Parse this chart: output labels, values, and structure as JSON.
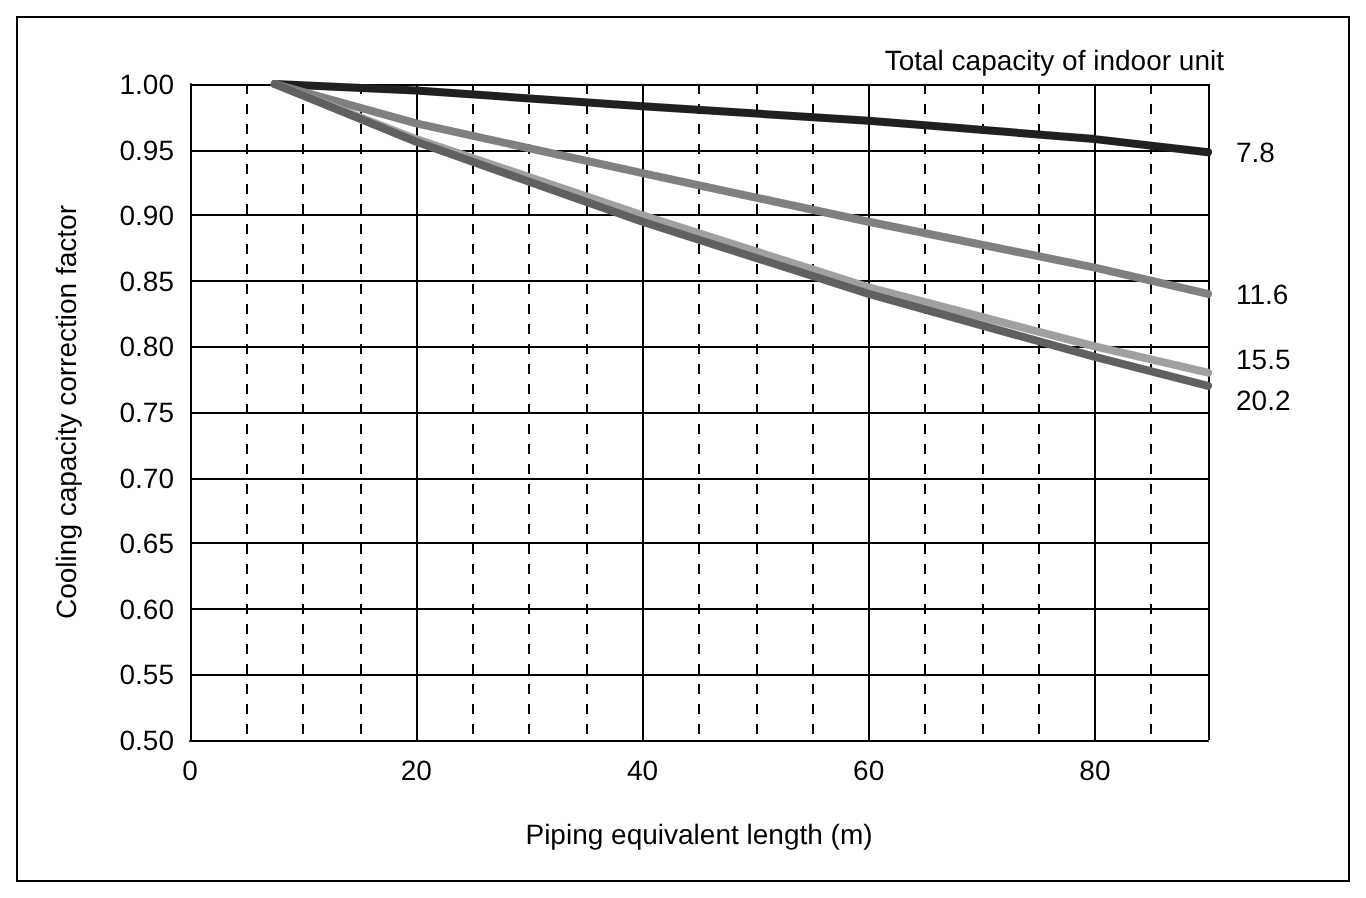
{
  "chart_data": {
    "type": "line",
    "xlabel": "Piping equivalent length (m)",
    "ylabel": "Cooling capacity correction factor",
    "annotations": [
      "Total capacity of indoor unit"
    ],
    "xlim": [
      0,
      90
    ],
    "xticks": [
      0,
      20,
      40,
      60,
      80
    ],
    "ylim": [
      0.5,
      1.0
    ],
    "yticks": [
      {
        "value": 0.5,
        "label": "0.50"
      },
      {
        "value": 0.55,
        "label": "0.55"
      },
      {
        "value": 0.6,
        "label": "0.60"
      },
      {
        "value": 0.65,
        "label": "0.65"
      },
      {
        "value": 0.7,
        "label": "0.70"
      },
      {
        "value": 0.75,
        "label": "0.75"
      },
      {
        "value": 0.8,
        "label": "0.80"
      },
      {
        "value": 0.85,
        "label": "0.85"
      },
      {
        "value": 0.9,
        "label": "0.90"
      },
      {
        "value": 0.95,
        "label": "0.95"
      },
      {
        "value": 1.0,
        "label": "1.00"
      }
    ],
    "grid": true,
    "marker": "none",
    "line_style": "solid",
    "x": [
      7.5,
      20,
      40,
      60,
      80,
      90
    ],
    "series": [
      {
        "name": "7.8",
        "color": "#231f20",
        "values": [
          1.0,
          0.995,
          0.983,
          0.972,
          0.958,
          0.948
        ]
      },
      {
        "name": "11.6",
        "color": "#808080",
        "values": [
          1.0,
          0.97,
          0.932,
          0.895,
          0.86,
          0.84
        ]
      },
      {
        "name": "15.5",
        "color": "#a0a0a0",
        "values": [
          1.0,
          0.958,
          0.9,
          0.845,
          0.8,
          0.78
        ]
      },
      {
        "name": "20.2",
        "color": "#606060",
        "values": [
          1.0,
          0.956,
          0.895,
          0.84,
          0.792,
          0.77
        ]
      }
    ]
  }
}
